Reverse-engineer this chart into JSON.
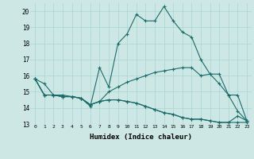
{
  "xlabel": "Humidex (Indice chaleur)",
  "background_color": "#cde8e4",
  "grid_color": "#a8d4d0",
  "line_color": "#1a6b6b",
  "xlim": [
    -0.5,
    23.5
  ],
  "ylim": [
    13,
    20.5
  ],
  "xticks": [
    0,
    1,
    2,
    3,
    4,
    5,
    6,
    7,
    8,
    9,
    10,
    11,
    12,
    13,
    14,
    15,
    16,
    17,
    18,
    19,
    20,
    21,
    22,
    23
  ],
  "yticks": [
    13,
    14,
    15,
    16,
    17,
    18,
    19,
    20
  ],
  "series": [
    [
      15.8,
      15.5,
      14.8,
      14.8,
      14.7,
      14.6,
      14.1,
      16.5,
      15.3,
      18.0,
      18.6,
      19.8,
      19.4,
      19.4,
      20.3,
      19.4,
      18.7,
      18.4,
      17.0,
      16.1,
      16.1,
      14.8,
      14.8,
      13.2
    ],
    [
      15.8,
      14.8,
      14.8,
      14.7,
      14.7,
      14.6,
      14.2,
      14.4,
      15.0,
      15.3,
      15.6,
      15.8,
      16.0,
      16.2,
      16.3,
      16.4,
      16.5,
      16.5,
      16.0,
      16.1,
      15.5,
      14.8,
      13.8,
      13.2
    ],
    [
      15.8,
      14.8,
      14.8,
      14.7,
      14.7,
      14.6,
      14.2,
      14.4,
      14.5,
      14.5,
      14.4,
      14.3,
      14.1,
      13.9,
      13.7,
      13.6,
      13.4,
      13.3,
      13.3,
      13.2,
      13.1,
      13.1,
      13.1,
      13.1
    ],
    [
      15.8,
      14.8,
      14.8,
      14.7,
      14.7,
      14.6,
      14.2,
      14.4,
      14.5,
      14.5,
      14.4,
      14.3,
      14.1,
      13.9,
      13.7,
      13.6,
      13.4,
      13.3,
      13.3,
      13.2,
      13.1,
      13.1,
      13.5,
      13.2
    ]
  ]
}
